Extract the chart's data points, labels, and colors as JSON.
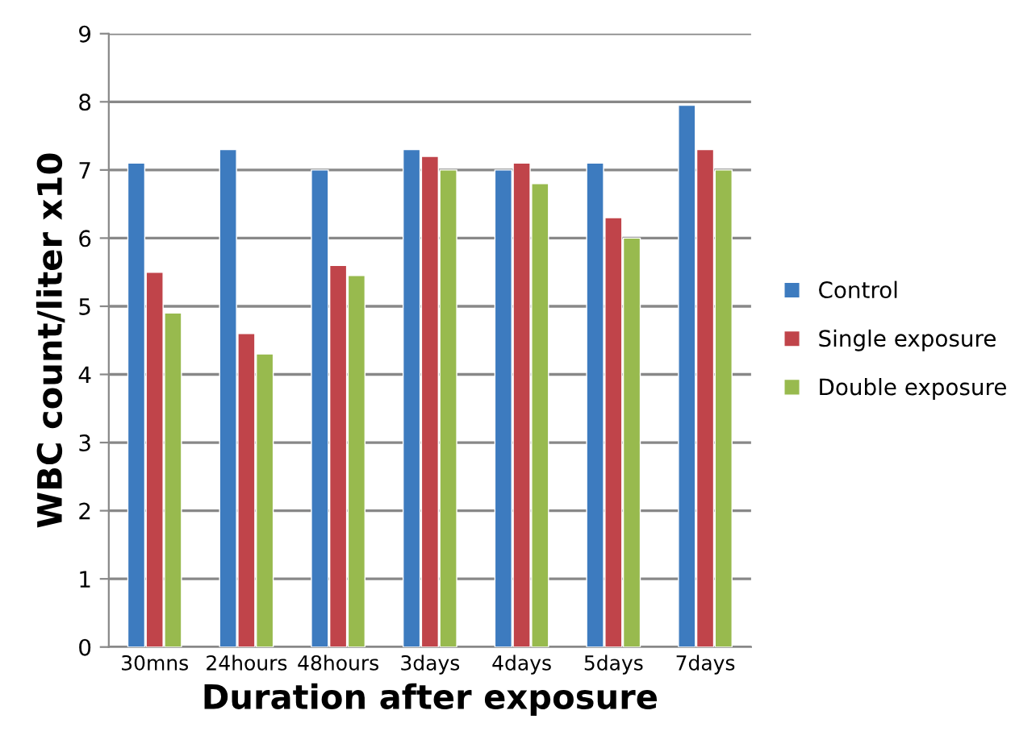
{
  "chart_data": {
    "type": "bar",
    "xlabel": "Duration after exposure",
    "ylabel": "WBC count/liter x10",
    "categories": [
      "30mns",
      "24hours",
      "48hours",
      "3days",
      "4days",
      "5days",
      "7days"
    ],
    "series": [
      {
        "name": "Control",
        "color": "#3d7bbf",
        "values": [
          7.1,
          7.3,
          7.0,
          7.3,
          7.0,
          7.1,
          7.95
        ]
      },
      {
        "name": "Single exposure",
        "color": "#c0444a",
        "values": [
          5.5,
          4.6,
          5.6,
          7.2,
          7.1,
          6.3,
          7.3
        ]
      },
      {
        "name": "Double exposure",
        "color": "#98ba4e",
        "values": [
          4.9,
          4.3,
          5.45,
          7.0,
          6.8,
          6.0,
          7.0
        ]
      }
    ],
    "ylim": [
      0,
      9
    ],
    "yticks": [
      0,
      1,
      2,
      3,
      4,
      5,
      6,
      7,
      8,
      9
    ],
    "grid": "y",
    "legend": "right"
  }
}
